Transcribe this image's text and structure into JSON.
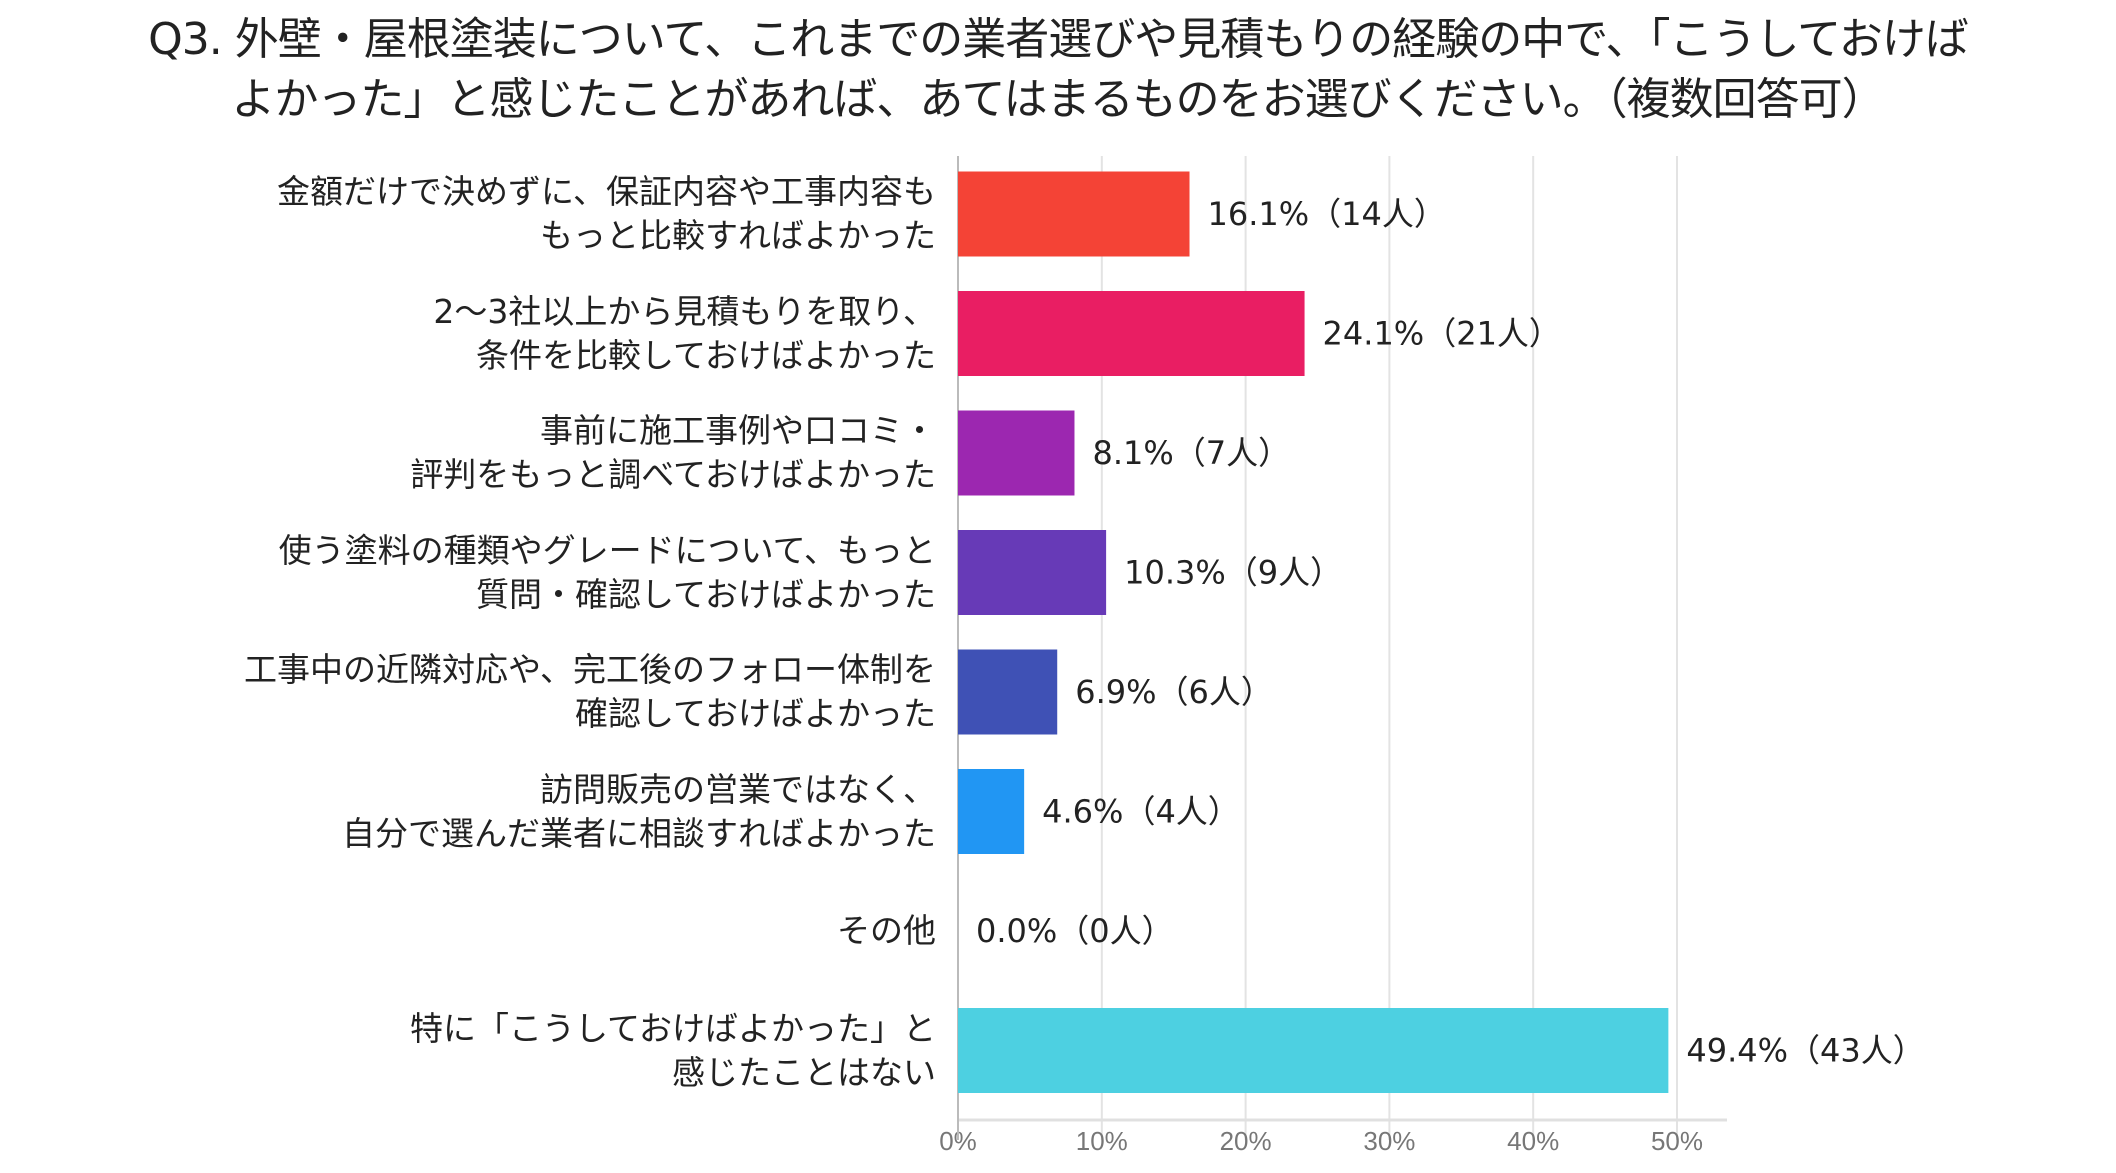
{
  "chart_data": {
    "type": "bar",
    "orientation": "horizontal",
    "title": [
      "Q3. 外壁・屋根塗装について、これまでの業者選びや見積もりの経験の中で、「こうしておけば",
      "よかった」と感じたことがあれば、あてはまるものをお選びください。（複数回答可）"
    ],
    "categories": [
      [
        "金額だけで決めずに、保証内容や工事内容も",
        "もっと比較すればよかった"
      ],
      [
        "2～3社以上から見積もりを取り、",
        "条件を比較しておけばよかった"
      ],
      [
        "事前に施工事例や口コミ・",
        "評判をもっと調べておけばよかった"
      ],
      [
        "使う塗料の種類やグレードについて、もっと",
        "質問・確認しておけばよかった"
      ],
      [
        "工事中の近隣対応や、完工後のフォロー体制を",
        "確認しておけばよかった"
      ],
      [
        "訪問販売の営業ではなく、",
        "自分で選んだ業者に相談すればよかった"
      ],
      [
        "その他"
      ],
      [
        "特に「こうしておけばよかった」と",
        "感じたことはない"
      ]
    ],
    "values": [
      16.1,
      24.1,
      8.1,
      10.3,
      6.9,
      4.6,
      0.0,
      49.4
    ],
    "counts": [
      14,
      21,
      7,
      9,
      6,
      4,
      0,
      43
    ],
    "data_labels": [
      "16.1%（14人）",
      "24.1%（21人）",
      "8.1%（7人）",
      "10.3%（9人）",
      "6.9%（6人）",
      "4.6%（4人）",
      "0.0%（0人）",
      "49.4%（43人）"
    ],
    "colors": [
      "#F44336",
      "#E91E63",
      "#9C27B0",
      "#673AB7",
      "#3F51B5",
      "#2196F3",
      "#9E9E9E",
      "#4DD0E1"
    ],
    "xlim": [
      0,
      50
    ],
    "xticks": [
      "0%",
      "10%",
      "20%",
      "30%",
      "40%",
      "50%"
    ],
    "xlabel": "",
    "ylabel": "",
    "grid": true
  }
}
